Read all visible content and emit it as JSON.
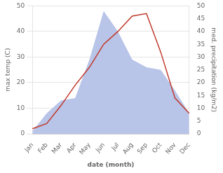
{
  "chart_data": {
    "type": "line",
    "categories": [
      "Jan",
      "Feb",
      "Mar",
      "Apr",
      "May",
      "Jun",
      "Jul",
      "Aug",
      "Sep",
      "Oct",
      "Nov",
      "Dec"
    ],
    "series": [
      {
        "type": "area",
        "color": "#b8c4e8",
        "axis": "y2",
        "values": [
          1,
          8,
          13,
          14,
          29,
          48,
          40,
          29,
          26,
          25,
          17,
          8
        ]
      },
      {
        "type": "line",
        "color": "#c0392b",
        "values": [
          2,
          4,
          11,
          19,
          26,
          35,
          40,
          46,
          47,
          32,
          14,
          8
        ]
      }
    ],
    "xlabel": "date (month)",
    "ylabel": "max temp (C)",
    "y2label": "med. precipitation (kg/m2)",
    "ylim": [
      0,
      50
    ],
    "yticks": [
      0,
      10,
      20,
      30,
      40,
      50
    ],
    "y2lim": [
      0,
      50
    ],
    "y2ticks": [
      0,
      5,
      10,
      15,
      20,
      25,
      30,
      35,
      40,
      45,
      50
    ],
    "grid": true
  }
}
